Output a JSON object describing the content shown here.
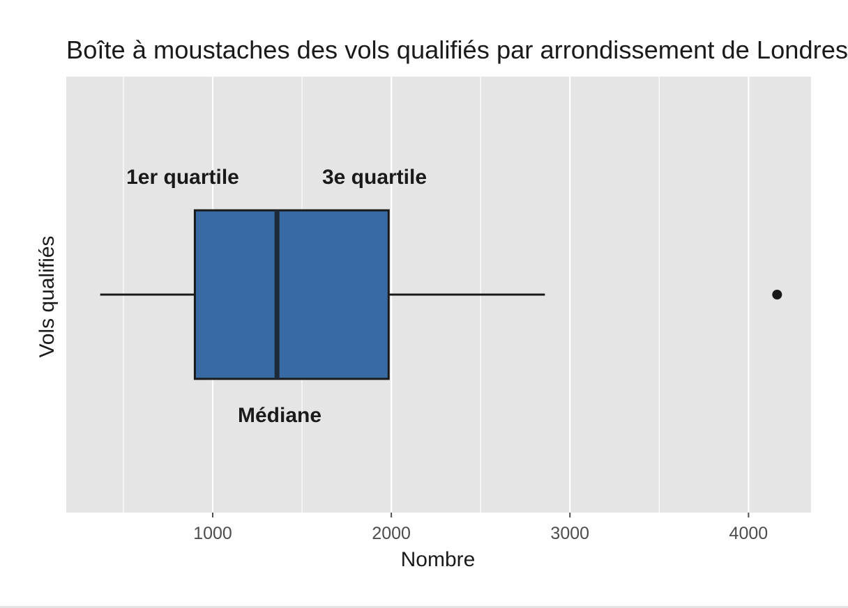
{
  "chart_data": {
    "type": "boxplot",
    "title": "Boîte à moustaches des vols qualifiés par arrondissement de Londres",
    "xlabel": "Nombre",
    "ylabel": "Vols qualifiés",
    "xlim": [
      180,
      4350
    ],
    "x_ticks": [
      1000,
      2000,
      3000,
      4000
    ],
    "x_tick_labels": [
      "1000",
      "2000",
      "3000",
      "4000"
    ],
    "grid": true,
    "box": {
      "whisker_low": 370,
      "q1": 900,
      "median": 1360,
      "q3": 1985,
      "whisker_high": 2860,
      "outliers": [
        4160
      ]
    },
    "annotations": {
      "q1_label": "1er quartile",
      "q3_label": "3e quartile",
      "median_label": "Médiane"
    },
    "colors": {
      "panel": "#e5e5e5",
      "grid": "#ffffff",
      "box_fill": "#386ba4",
      "box_stroke": "#1a1a1a"
    }
  }
}
